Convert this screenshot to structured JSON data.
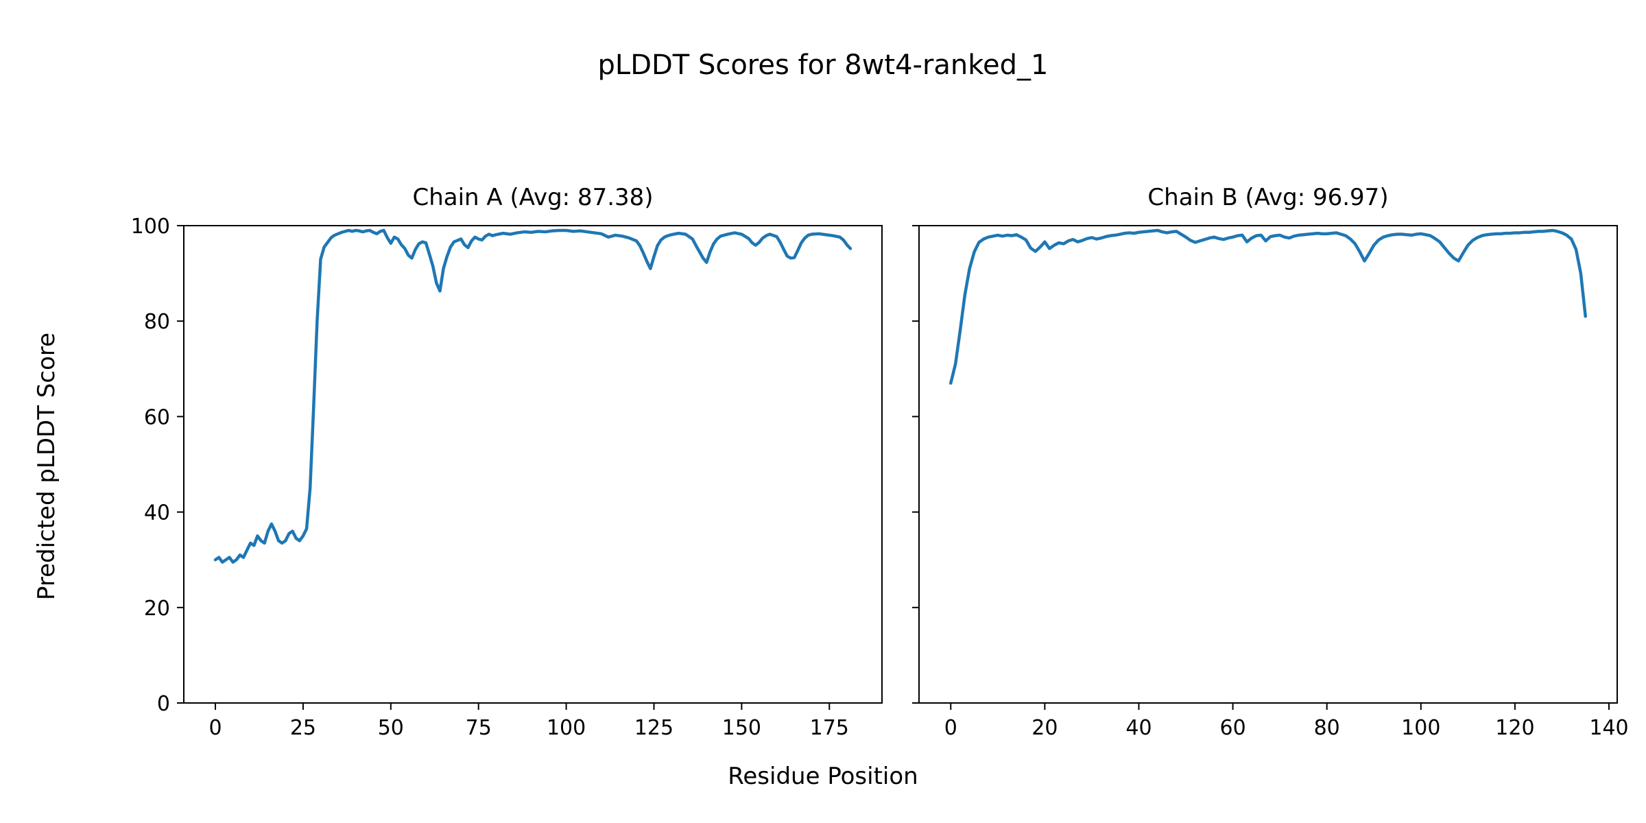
{
  "figure": {
    "title": "pLDDT Scores for 8wt4-ranked_1",
    "xlabel": "Residue Position",
    "ylabel": "Predicted pLDDT Score",
    "line_color": "#1f77b4",
    "background": "#ffffff"
  },
  "chart_data": [
    {
      "type": "line",
      "title": "Chain A (Avg: 87.38)",
      "series_name": "Chain A pLDDT",
      "avg": 87.38,
      "xlim": [
        -9,
        190
      ],
      "ylim": [
        0,
        100
      ],
      "xticks": [
        0,
        25,
        50,
        75,
        100,
        125,
        150,
        175
      ],
      "yticks": [
        0,
        20,
        40,
        60,
        80,
        100
      ],
      "ytick_labels_visible": true,
      "grid": false,
      "points": [
        [
          0,
          30
        ],
        [
          1,
          30.5
        ],
        [
          2,
          29.5
        ],
        [
          3,
          30
        ],
        [
          4,
          30.5
        ],
        [
          5,
          29.5
        ],
        [
          6,
          30
        ],
        [
          7,
          31
        ],
        [
          8,
          30.5
        ],
        [
          9,
          32
        ],
        [
          10,
          33.5
        ],
        [
          11,
          33
        ],
        [
          12,
          35
        ],
        [
          13,
          34
        ],
        [
          14,
          33.5
        ],
        [
          15,
          36
        ],
        [
          16,
          37.5
        ],
        [
          17,
          36
        ],
        [
          18,
          34
        ],
        [
          19,
          33.5
        ],
        [
          20,
          34
        ],
        [
          21,
          35.5
        ],
        [
          22,
          36
        ],
        [
          23,
          34.5
        ],
        [
          24,
          34
        ],
        [
          25,
          35
        ],
        [
          26,
          36.5
        ],
        [
          27,
          45
        ],
        [
          28,
          62
        ],
        [
          29,
          80
        ],
        [
          30,
          93
        ],
        [
          31,
          95.5
        ],
        [
          32,
          96.5
        ],
        [
          33,
          97.5
        ],
        [
          34,
          98
        ],
        [
          35,
          98.3
        ],
        [
          36,
          98.6
        ],
        [
          37,
          98.8
        ],
        [
          38,
          99
        ],
        [
          39,
          98.8
        ],
        [
          40,
          99
        ],
        [
          41,
          98.9
        ],
        [
          42,
          98.7
        ],
        [
          43,
          98.9
        ],
        [
          44,
          99
        ],
        [
          45,
          98.6
        ],
        [
          46,
          98.3
        ],
        [
          47,
          98.8
        ],
        [
          48,
          99
        ],
        [
          49,
          97.5
        ],
        [
          50,
          96.3
        ],
        [
          51,
          97.6
        ],
        [
          52,
          97.2
        ],
        [
          53,
          96
        ],
        [
          54,
          95.2
        ],
        [
          55,
          93.8
        ],
        [
          56,
          93.2
        ],
        [
          57,
          95
        ],
        [
          58,
          96.2
        ],
        [
          59,
          96.6
        ],
        [
          60,
          96.4
        ],
        [
          61,
          94
        ],
        [
          62,
          91.5
        ],
        [
          63,
          88
        ],
        [
          64,
          86.3
        ],
        [
          65,
          91
        ],
        [
          66,
          93.5
        ],
        [
          67,
          95.5
        ],
        [
          68,
          96.6
        ],
        [
          69,
          96.9
        ],
        [
          70,
          97.2
        ],
        [
          71,
          96
        ],
        [
          72,
          95.4
        ],
        [
          73,
          96.8
        ],
        [
          74,
          97.6
        ],
        [
          75,
          97.2
        ],
        [
          76,
          97
        ],
        [
          77,
          97.8
        ],
        [
          78,
          98.2
        ],
        [
          79,
          97.9
        ],
        [
          80,
          98.1
        ],
        [
          82,
          98.4
        ],
        [
          84,
          98.2
        ],
        [
          86,
          98.5
        ],
        [
          88,
          98.7
        ],
        [
          90,
          98.6
        ],
        [
          92,
          98.8
        ],
        [
          94,
          98.7
        ],
        [
          96,
          98.9
        ],
        [
          98,
          99
        ],
        [
          100,
          99
        ],
        [
          102,
          98.8
        ],
        [
          104,
          98.9
        ],
        [
          106,
          98.7
        ],
        [
          108,
          98.5
        ],
        [
          110,
          98.3
        ],
        [
          112,
          97.6
        ],
        [
          114,
          98
        ],
        [
          116,
          97.8
        ],
        [
          118,
          97.4
        ],
        [
          120,
          96.8
        ],
        [
          121,
          95.8
        ],
        [
          122,
          94.2
        ],
        [
          123,
          92.5
        ],
        [
          124,
          91
        ],
        [
          125,
          93.5
        ],
        [
          126,
          95.8
        ],
        [
          127,
          97
        ],
        [
          128,
          97.6
        ],
        [
          129,
          97.9
        ],
        [
          130,
          98.1
        ],
        [
          132,
          98.4
        ],
        [
          134,
          98.2
        ],
        [
          136,
          97.2
        ],
        [
          137,
          95.8
        ],
        [
          138,
          94.5
        ],
        [
          139,
          93.2
        ],
        [
          140,
          92.3
        ],
        [
          141,
          94.5
        ],
        [
          142,
          96.2
        ],
        [
          143,
          97.2
        ],
        [
          144,
          97.8
        ],
        [
          146,
          98.2
        ],
        [
          148,
          98.5
        ],
        [
          150,
          98.2
        ],
        [
          152,
          97.3
        ],
        [
          153,
          96.4
        ],
        [
          154,
          95.9
        ],
        [
          155,
          96.5
        ],
        [
          156,
          97.4
        ],
        [
          157,
          97.9
        ],
        [
          158,
          98.2
        ],
        [
          160,
          97.7
        ],
        [
          161,
          96.5
        ],
        [
          162,
          95
        ],
        [
          163,
          93.6
        ],
        [
          164,
          93.2
        ],
        [
          165,
          93.3
        ],
        [
          166,
          94.8
        ],
        [
          167,
          96.4
        ],
        [
          168,
          97.4
        ],
        [
          169,
          98
        ],
        [
          170,
          98.2
        ],
        [
          172,
          98.3
        ],
        [
          174,
          98.1
        ],
        [
          176,
          97.9
        ],
        [
          178,
          97.6
        ],
        [
          179,
          97
        ],
        [
          180,
          96
        ],
        [
          181,
          95.2
        ]
      ]
    },
    {
      "type": "line",
      "title": "Chain B (Avg: 96.97)",
      "series_name": "Chain B pLDDT",
      "avg": 96.97,
      "xlim": [
        -6.75,
        141.75
      ],
      "ylim": [
        0,
        100
      ],
      "xticks": [
        0,
        20,
        40,
        60,
        80,
        100,
        120,
        140
      ],
      "yticks": [
        0,
        20,
        40,
        60,
        80,
        100
      ],
      "ytick_labels_visible": false,
      "grid": false,
      "points": [
        [
          0,
          67
        ],
        [
          1,
          71
        ],
        [
          2,
          78
        ],
        [
          3,
          85.5
        ],
        [
          4,
          91
        ],
        [
          5,
          94.5
        ],
        [
          6,
          96.5
        ],
        [
          7,
          97.2
        ],
        [
          8,
          97.6
        ],
        [
          9,
          97.8
        ],
        [
          10,
          98
        ],
        [
          11,
          97.8
        ],
        [
          12,
          98
        ],
        [
          13,
          97.9
        ],
        [
          14,
          98.1
        ],
        [
          15,
          97.6
        ],
        [
          16,
          97
        ],
        [
          17,
          95.3
        ],
        [
          18,
          94.6
        ],
        [
          19,
          95.5
        ],
        [
          20,
          96.6
        ],
        [
          21,
          95.2
        ],
        [
          22,
          95.9
        ],
        [
          23,
          96.4
        ],
        [
          24,
          96.2
        ],
        [
          25,
          96.8
        ],
        [
          26,
          97.1
        ],
        [
          27,
          96.6
        ],
        [
          28,
          96.9
        ],
        [
          29,
          97.3
        ],
        [
          30,
          97.5
        ],
        [
          31,
          97.2
        ],
        [
          32,
          97.4
        ],
        [
          33,
          97.7
        ],
        [
          34,
          97.9
        ],
        [
          35,
          98
        ],
        [
          36,
          98.2
        ],
        [
          37,
          98.4
        ],
        [
          38,
          98.5
        ],
        [
          39,
          98.4
        ],
        [
          40,
          98.6
        ],
        [
          41,
          98.7
        ],
        [
          42,
          98.8
        ],
        [
          43,
          98.9
        ],
        [
          44,
          99
        ],
        [
          45,
          98.7
        ],
        [
          46,
          98.5
        ],
        [
          47,
          98.7
        ],
        [
          48,
          98.8
        ],
        [
          49,
          98.2
        ],
        [
          50,
          97.6
        ],
        [
          51,
          96.9
        ],
        [
          52,
          96.5
        ],
        [
          53,
          96.8
        ],
        [
          54,
          97.1
        ],
        [
          55,
          97.4
        ],
        [
          56,
          97.6
        ],
        [
          57,
          97.3
        ],
        [
          58,
          97.1
        ],
        [
          59,
          97.4
        ],
        [
          60,
          97.6
        ],
        [
          61,
          97.9
        ],
        [
          62,
          98
        ],
        [
          63,
          96.6
        ],
        [
          64,
          97.4
        ],
        [
          65,
          97.9
        ],
        [
          66,
          98
        ],
        [
          67,
          96.8
        ],
        [
          68,
          97.7
        ],
        [
          69,
          97.9
        ],
        [
          70,
          98
        ],
        [
          71,
          97.6
        ],
        [
          72,
          97.4
        ],
        [
          73,
          97.8
        ],
        [
          74,
          98
        ],
        [
          75,
          98.1
        ],
        [
          76,
          98.2
        ],
        [
          77,
          98.3
        ],
        [
          78,
          98.4
        ],
        [
          79,
          98.3
        ],
        [
          80,
          98.3
        ],
        [
          81,
          98.4
        ],
        [
          82,
          98.5
        ],
        [
          83,
          98.2
        ],
        [
          84,
          97.9
        ],
        [
          85,
          97.2
        ],
        [
          86,
          96.2
        ],
        [
          87,
          94.5
        ],
        [
          88,
          92.6
        ],
        [
          89,
          94.2
        ],
        [
          90,
          95.9
        ],
        [
          91,
          97
        ],
        [
          92,
          97.6
        ],
        [
          93,
          97.9
        ],
        [
          94,
          98.1
        ],
        [
          95,
          98.2
        ],
        [
          96,
          98.2
        ],
        [
          97,
          98.1
        ],
        [
          98,
          98
        ],
        [
          99,
          98.2
        ],
        [
          100,
          98.3
        ],
        [
          101,
          98.1
        ],
        [
          102,
          97.9
        ],
        [
          103,
          97.3
        ],
        [
          104,
          96.6
        ],
        [
          105,
          95.4
        ],
        [
          106,
          94.2
        ],
        [
          107,
          93.2
        ],
        [
          108,
          92.6
        ],
        [
          109,
          94.3
        ],
        [
          110,
          95.9
        ],
        [
          111,
          96.9
        ],
        [
          112,
          97.5
        ],
        [
          113,
          97.9
        ],
        [
          114,
          98.1
        ],
        [
          115,
          98.2
        ],
        [
          116,
          98.3
        ],
        [
          117,
          98.3
        ],
        [
          118,
          98.4
        ],
        [
          119,
          98.4
        ],
        [
          120,
          98.5
        ],
        [
          121,
          98.5
        ],
        [
          122,
          98.6
        ],
        [
          123,
          98.6
        ],
        [
          124,
          98.7
        ],
        [
          125,
          98.8
        ],
        [
          126,
          98.8
        ],
        [
          127,
          98.9
        ],
        [
          128,
          99
        ],
        [
          129,
          98.8
        ],
        [
          130,
          98.5
        ],
        [
          131,
          98
        ],
        [
          132,
          97.2
        ],
        [
          133,
          95
        ],
        [
          134,
          90
        ],
        [
          135,
          81
        ]
      ]
    }
  ]
}
